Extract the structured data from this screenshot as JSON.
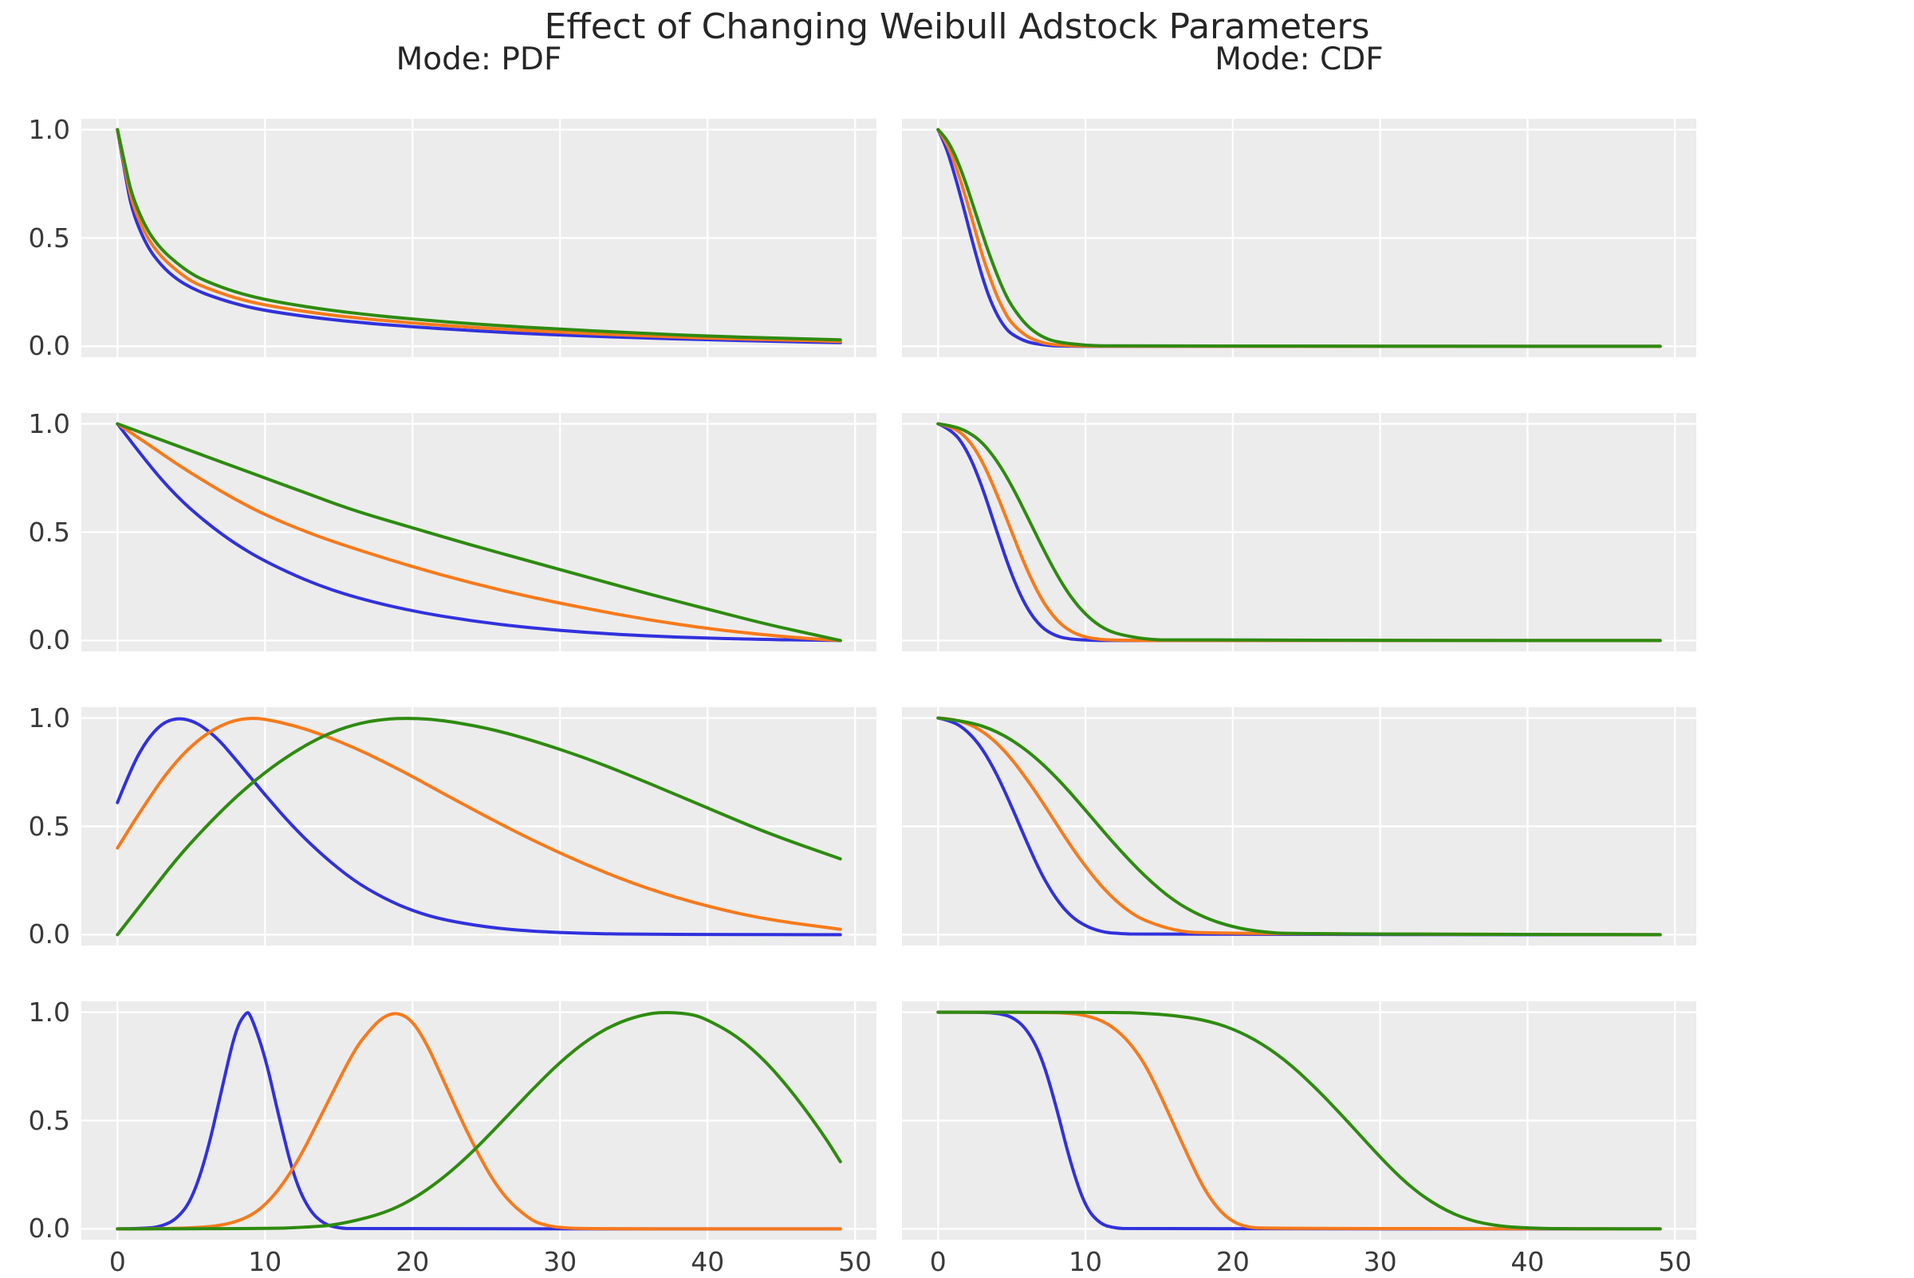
{
  "figure": {
    "title": "Effect of Changing Weibull Adstock Parameters",
    "background": "#ffffff",
    "plot_background": "#ececec",
    "grid_color": "#ffffff",
    "tick_label_color": "#3a3a3a",
    "title_color": "#262626",
    "series_colors": {
      "blue": "#3131dd",
      "orange": "#f8791b",
      "green": "#2e8b0f"
    }
  },
  "columns": [
    {
      "title": "Mode: PDF"
    },
    {
      "title": "Mode: CDF"
    }
  ],
  "axes": {
    "x_ticks": [
      "0",
      "10",
      "20",
      "30",
      "40",
      "50"
    ],
    "y_ticks": [
      "1.0",
      "0.5",
      "0.0"
    ],
    "x_tick_values": [
      0,
      10,
      20,
      30,
      40,
      50
    ],
    "y_tick_values": [
      1.0,
      0.5,
      0.0
    ],
    "xlim": [
      -2.45,
      51.45
    ],
    "ylim": [
      -0.05,
      1.05
    ],
    "grid": true,
    "legend": false
  },
  "chart_data": [
    {
      "row": 1,
      "mode": "PDF",
      "type": "line",
      "show_y_ticklabels": true,
      "show_x_ticklabels": false,
      "series": [
        {
          "color_key": "blue",
          "x": [
            0,
            0.5,
            1,
            2,
            3,
            4,
            5,
            6,
            8,
            10,
            13,
            16,
            20,
            25,
            30,
            35,
            40,
            45,
            49
          ],
          "y": [
            1.0,
            0.8,
            0.62,
            0.46,
            0.37,
            0.31,
            0.27,
            0.24,
            0.195,
            0.165,
            0.135,
            0.112,
            0.09,
            0.068,
            0.052,
            0.04,
            0.03,
            0.022,
            0.017
          ]
        },
        {
          "color_key": "orange",
          "x": [
            0,
            0.5,
            1,
            2,
            3,
            4,
            5,
            6,
            8,
            10,
            13,
            16,
            20,
            25,
            30,
            35,
            40,
            45,
            49
          ],
          "y": [
            1.0,
            0.82,
            0.655,
            0.5,
            0.41,
            0.35,
            0.3,
            0.27,
            0.222,
            0.19,
            0.157,
            0.132,
            0.107,
            0.083,
            0.065,
            0.05,
            0.038,
            0.029,
            0.023
          ]
        },
        {
          "color_key": "green",
          "x": [
            0,
            0.5,
            1,
            2,
            3,
            4,
            5,
            6,
            8,
            10,
            13,
            16,
            20,
            25,
            30,
            35,
            40,
            45,
            49
          ],
          "y": [
            1.0,
            0.84,
            0.69,
            0.535,
            0.445,
            0.385,
            0.335,
            0.3,
            0.25,
            0.215,
            0.18,
            0.153,
            0.125,
            0.099,
            0.079,
            0.062,
            0.047,
            0.037,
            0.03
          ]
        }
      ]
    },
    {
      "row": 1,
      "mode": "CDF",
      "type": "line",
      "show_y_ticklabels": false,
      "show_x_ticklabels": false,
      "series": [
        {
          "color_key": "blue",
          "x": [
            0,
            0.5,
            1,
            1.5,
            2,
            2.5,
            3,
            3.5,
            4,
            4.5,
            5,
            6,
            7,
            8,
            10,
            12,
            49
          ],
          "y": [
            1.0,
            0.93,
            0.82,
            0.7,
            0.57,
            0.44,
            0.32,
            0.22,
            0.145,
            0.09,
            0.055,
            0.02,
            0.007,
            0.002,
            0.0,
            0.0,
            0.0
          ]
        },
        {
          "color_key": "orange",
          "x": [
            0,
            0.5,
            1,
            1.5,
            2,
            2.5,
            3,
            3.5,
            4,
            4.5,
            5,
            6,
            7,
            8,
            10,
            12,
            49
          ],
          "y": [
            1.0,
            0.95,
            0.87,
            0.77,
            0.66,
            0.54,
            0.42,
            0.32,
            0.23,
            0.16,
            0.105,
            0.045,
            0.017,
            0.006,
            0.001,
            0.0,
            0.0
          ]
        },
        {
          "color_key": "green",
          "x": [
            0,
            0.5,
            1,
            1.5,
            2,
            2.5,
            3,
            3.5,
            4,
            4.5,
            5,
            6,
            7,
            8,
            10,
            12,
            49
          ],
          "y": [
            1.0,
            0.965,
            0.905,
            0.825,
            0.73,
            0.625,
            0.52,
            0.42,
            0.33,
            0.25,
            0.185,
            0.095,
            0.045,
            0.02,
            0.004,
            0.001,
            0.0
          ]
        }
      ]
    },
    {
      "row": 2,
      "mode": "PDF",
      "type": "line",
      "show_y_ticklabels": true,
      "show_x_ticklabels": false,
      "series": [
        {
          "color_key": "blue",
          "x": [
            0,
            2,
            4,
            6,
            8,
            10,
            13,
            16,
            20,
            24,
            28,
            32,
            36,
            40,
            44,
            47,
            49
          ],
          "y": [
            1.0,
            0.82,
            0.665,
            0.545,
            0.445,
            0.365,
            0.27,
            0.2,
            0.135,
            0.09,
            0.058,
            0.036,
            0.021,
            0.011,
            0.005,
            0.002,
            0.0
          ]
        },
        {
          "color_key": "orange",
          "x": [
            0,
            2,
            4,
            6,
            8,
            10,
            13,
            16,
            20,
            24,
            28,
            32,
            36,
            40,
            44,
            47,
            49
          ],
          "y": [
            1.0,
            0.91,
            0.815,
            0.73,
            0.65,
            0.58,
            0.495,
            0.425,
            0.34,
            0.265,
            0.2,
            0.145,
            0.095,
            0.055,
            0.025,
            0.008,
            0.0
          ]
        },
        {
          "color_key": "green",
          "x": [
            0,
            2,
            4,
            6,
            8,
            10,
            13,
            16,
            20,
            24,
            28,
            32,
            36,
            40,
            44,
            47,
            49
          ],
          "y": [
            1.0,
            0.95,
            0.9,
            0.85,
            0.8,
            0.75,
            0.675,
            0.6,
            0.52,
            0.44,
            0.365,
            0.29,
            0.215,
            0.145,
            0.075,
            0.03,
            0.0
          ]
        }
      ]
    },
    {
      "row": 2,
      "mode": "CDF",
      "type": "line",
      "show_y_ticklabels": false,
      "show_x_ticklabels": false,
      "series": [
        {
          "color_key": "blue",
          "x": [
            0,
            1,
            2,
            3,
            4,
            5,
            6,
            7,
            8,
            9,
            10,
            11,
            12,
            14,
            16,
            49
          ],
          "y": [
            1.0,
            0.97,
            0.875,
            0.71,
            0.5,
            0.3,
            0.15,
            0.06,
            0.02,
            0.006,
            0.002,
            0.0,
            0.0,
            0.0,
            0.0,
            0.0
          ]
        },
        {
          "color_key": "orange",
          "x": [
            0,
            1,
            2,
            3,
            4,
            5,
            6,
            7,
            8,
            9,
            10,
            11,
            12,
            14,
            16,
            49
          ],
          "y": [
            1.0,
            0.985,
            0.935,
            0.83,
            0.675,
            0.5,
            0.33,
            0.19,
            0.095,
            0.04,
            0.015,
            0.005,
            0.002,
            0.0,
            0.0,
            0.0
          ]
        },
        {
          "color_key": "green",
          "x": [
            0,
            1,
            2,
            3,
            4,
            5,
            6,
            7,
            8,
            9,
            10,
            11,
            12,
            14,
            16,
            49
          ],
          "y": [
            1.0,
            0.99,
            0.965,
            0.915,
            0.83,
            0.715,
            0.58,
            0.44,
            0.31,
            0.2,
            0.12,
            0.065,
            0.032,
            0.006,
            0.001,
            0.0
          ]
        }
      ]
    },
    {
      "row": 3,
      "mode": "PDF",
      "type": "line",
      "show_y_ticklabels": true,
      "show_x_ticklabels": false,
      "series": [
        {
          "color_key": "blue",
          "x": [
            0,
            1,
            2,
            3,
            4,
            5,
            6,
            7,
            8,
            10,
            12,
            14,
            16,
            18,
            20,
            22,
            25,
            28,
            32,
            36,
            40,
            49
          ],
          "y": [
            0.61,
            0.78,
            0.9,
            0.975,
            1.0,
            0.99,
            0.95,
            0.89,
            0.81,
            0.645,
            0.49,
            0.36,
            0.25,
            0.17,
            0.11,
            0.07,
            0.035,
            0.016,
            0.005,
            0.002,
            0.001,
            0.0
          ]
        },
        {
          "color_key": "orange",
          "x": [
            0,
            1,
            2,
            3,
            4,
            5,
            6,
            7,
            8,
            9,
            10,
            12,
            14,
            16,
            18,
            20,
            22,
            25,
            28,
            32,
            36,
            40,
            44,
            49
          ],
          "y": [
            0.4,
            0.51,
            0.615,
            0.715,
            0.8,
            0.87,
            0.925,
            0.965,
            0.99,
            1.0,
            0.995,
            0.965,
            0.92,
            0.865,
            0.8,
            0.73,
            0.655,
            0.545,
            0.44,
            0.315,
            0.21,
            0.13,
            0.07,
            0.025
          ]
        },
        {
          "color_key": "green",
          "x": [
            0,
            2,
            4,
            6,
            8,
            10,
            12,
            14,
            16,
            18,
            20,
            22,
            25,
            28,
            32,
            36,
            40,
            44,
            49
          ],
          "y": [
            0.0,
            0.175,
            0.35,
            0.5,
            0.635,
            0.75,
            0.845,
            0.92,
            0.97,
            0.995,
            1.0,
            0.99,
            0.955,
            0.9,
            0.81,
            0.7,
            0.585,
            0.47,
            0.35
          ]
        }
      ]
    },
    {
      "row": 3,
      "mode": "CDF",
      "type": "line",
      "show_y_ticklabels": false,
      "show_x_ticklabels": false,
      "series": [
        {
          "color_key": "blue",
          "x": [
            0,
            1,
            2,
            3,
            4,
            5,
            6,
            7,
            8,
            9,
            10,
            11,
            12,
            14,
            49
          ],
          "y": [
            1.0,
            0.985,
            0.94,
            0.86,
            0.74,
            0.59,
            0.43,
            0.28,
            0.165,
            0.085,
            0.04,
            0.015,
            0.006,
            0.001,
            0.0
          ]
        },
        {
          "color_key": "orange",
          "x": [
            0,
            1,
            2,
            3,
            4,
            5,
            6,
            7,
            8,
            9,
            10,
            11,
            12,
            13,
            14,
            16,
            18,
            49
          ],
          "y": [
            1.0,
            0.995,
            0.975,
            0.94,
            0.885,
            0.81,
            0.72,
            0.62,
            0.515,
            0.41,
            0.315,
            0.23,
            0.16,
            0.105,
            0.065,
            0.02,
            0.005,
            0.0
          ]
        },
        {
          "color_key": "green",
          "x": [
            0,
            2,
            4,
            6,
            8,
            10,
            12,
            14,
            16,
            18,
            20,
            22,
            24,
            49
          ],
          "y": [
            1.0,
            0.985,
            0.94,
            0.855,
            0.73,
            0.575,
            0.415,
            0.27,
            0.155,
            0.08,
            0.035,
            0.012,
            0.004,
            0.0
          ]
        }
      ]
    },
    {
      "row": 4,
      "mode": "PDF",
      "type": "line",
      "show_y_ticklabels": true,
      "show_x_ticklabels": true,
      "series": [
        {
          "color_key": "blue",
          "x": [
            0,
            2,
            3,
            4,
            5,
            6,
            7,
            8,
            8.7,
            9,
            10,
            11,
            12,
            13,
            14,
            15,
            16,
            49
          ],
          "y": [
            0.0,
            0.002,
            0.012,
            0.045,
            0.13,
            0.33,
            0.62,
            0.92,
            1.0,
            0.995,
            0.8,
            0.5,
            0.23,
            0.085,
            0.022,
            0.004,
            0.0,
            0.0
          ]
        },
        {
          "color_key": "orange",
          "x": [
            0,
            5,
            8,
            10,
            12,
            14,
            16,
            17,
            18,
            19,
            20,
            21,
            22,
            24,
            26,
            28,
            29,
            30,
            32,
            49
          ],
          "y": [
            0.0,
            0.0,
            0.025,
            0.1,
            0.28,
            0.55,
            0.82,
            0.91,
            0.98,
            1.0,
            0.96,
            0.85,
            0.7,
            0.4,
            0.16,
            0.04,
            0.017,
            0.006,
            0.0,
            0.0
          ]
        },
        {
          "color_key": "green",
          "x": [
            0,
            10,
            13,
            15,
            18,
            20,
            22,
            24,
            26,
            28,
            30,
            32,
            34,
            36,
            37.5,
            39,
            40,
            42,
            44,
            46,
            48,
            49
          ],
          "y": [
            0.0,
            0.001,
            0.008,
            0.02,
            0.07,
            0.135,
            0.23,
            0.35,
            0.49,
            0.635,
            0.77,
            0.88,
            0.955,
            0.995,
            1.0,
            0.99,
            0.965,
            0.89,
            0.77,
            0.61,
            0.42,
            0.31
          ]
        }
      ]
    },
    {
      "row": 4,
      "mode": "CDF",
      "type": "line",
      "show_y_ticklabels": false,
      "show_x_ticklabels": true,
      "series": [
        {
          "color_key": "blue",
          "x": [
            0,
            3,
            4,
            5,
            6,
            7,
            8,
            9,
            10,
            11,
            12,
            13,
            49
          ],
          "y": [
            1.0,
            1.0,
            0.995,
            0.98,
            0.925,
            0.8,
            0.57,
            0.3,
            0.1,
            0.022,
            0.004,
            0.0,
            0.0
          ]
        },
        {
          "color_key": "orange",
          "x": [
            0,
            7,
            9,
            10,
            11,
            12,
            13,
            14,
            15,
            16,
            17,
            18,
            19,
            20,
            21,
            22,
            49
          ],
          "y": [
            1.0,
            1.0,
            0.995,
            0.985,
            0.965,
            0.925,
            0.86,
            0.765,
            0.63,
            0.48,
            0.33,
            0.19,
            0.09,
            0.032,
            0.008,
            0.002,
            0.0
          ]
        },
        {
          "color_key": "green",
          "x": [
            0,
            12,
            14,
            16,
            18,
            20,
            22,
            24,
            26,
            28,
            30,
            32,
            34,
            36,
            38,
            40,
            42,
            49
          ],
          "y": [
            1.0,
            1.0,
            0.995,
            0.985,
            0.965,
            0.925,
            0.855,
            0.755,
            0.625,
            0.48,
            0.33,
            0.195,
            0.1,
            0.04,
            0.013,
            0.004,
            0.001,
            0.0
          ]
        }
      ]
    }
  ]
}
